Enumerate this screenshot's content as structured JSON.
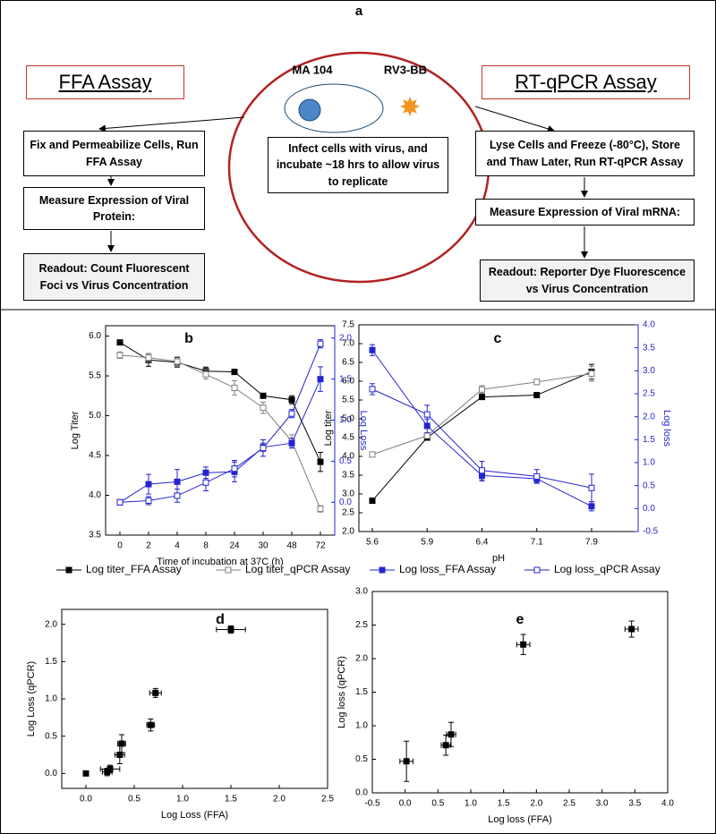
{
  "diagram": {
    "label": "a",
    "left": {
      "title": "FFA Assay",
      "steps": [
        "Fix and Permeabilize Cells, Run FFA Assay",
        "Measure Expression of Viral Protein:",
        "Readout: Count Fluorescent Foci vs Virus Concentration"
      ]
    },
    "center": {
      "cell": "MA 104",
      "virus": "RV3-BB",
      "text": "Infect cells with virus, and incubate ~18 hrs to allow virus to replicate"
    },
    "right": {
      "title": "RT-qPCR Assay",
      "steps": [
        "Lyse Cells and Freeze (-80°C), Store and Thaw Later, Run RT-qPCR Assay",
        "Measure Expression of Viral mRNA:",
        "Readout:  Reporter Dye Fluorescence vs Virus Concentration"
      ]
    }
  },
  "chart_data": [
    {
      "type": "line",
      "label": "b",
      "xlabel": "Time of incubation at 37C (h)",
      "ylabel": "Log Titer",
      "y2label": "Log Loss",
      "categories": [
        "0",
        "2",
        "4",
        "8",
        "24",
        "30",
        "48",
        "72"
      ],
      "ylim": [
        3.5,
        6.13
      ],
      "yticks": [
        {
          "value": 3.5,
          "label": "3.5"
        },
        {
          "value": 4,
          "label": "4.0"
        },
        {
          "value": 4.5,
          "label": "4.5"
        },
        {
          "value": 5,
          "label": "5.0"
        },
        {
          "value": 5.5,
          "label": "5.5"
        },
        {
          "value": 6,
          "label": "6.0"
        }
      ],
      "y2lim": [
        -0.4,
        2.15
      ],
      "y2ticks": [
        {
          "value": 0,
          "label": "0.0"
        },
        {
          "value": 0.5,
          "label": "0.5"
        },
        {
          "value": 1,
          "label": "1.0"
        },
        {
          "value": 1.5,
          "label": "1.5"
        },
        {
          "value": 2,
          "label": "2.0"
        }
      ],
      "series": [
        {
          "name": "Log titer_FFA Assay",
          "color": "#000000",
          "marker": "filled",
          "values": [
            5.92,
            5.7,
            5.67,
            5.56,
            5.55,
            5.25,
            5.2,
            4.42
          ],
          "errors": [
            0.02,
            0.08,
            0.06,
            0.05,
            0.03,
            0.03,
            0.05,
            0.12
          ]
        },
        {
          "name": "Log titer_qPCR Assay",
          "color": "#808080",
          "marker": "open",
          "values": [
            5.76,
            5.73,
            5.68,
            5.52,
            5.35,
            5.1,
            4.68,
            3.83
          ],
          "errors": [
            0.04,
            0.05,
            0.06,
            0.06,
            0.09,
            0.07,
            0.08,
            0.04
          ]
        },
        {
          "name": "Log loss_FFA Assay",
          "color": "#2424d0",
          "marker": "filled",
          "axis": "y2",
          "values": [
            0.0,
            0.22,
            0.25,
            0.36,
            0.37,
            0.67,
            0.72,
            1.5
          ],
          "errors": [
            0.01,
            0.12,
            0.15,
            0.07,
            0.12,
            0.05,
            0.06,
            0.15
          ]
        },
        {
          "name": "Log loss_qPCR Assay",
          "color": "#2424d0",
          "marker": "open",
          "axis": "y2",
          "values": [
            0.0,
            0.02,
            0.08,
            0.24,
            0.41,
            0.66,
            1.08,
            1.93
          ],
          "errors": [
            0.02,
            0.05,
            0.08,
            0.1,
            0.1,
            0.1,
            0.05,
            0.05
          ]
        }
      ]
    },
    {
      "type": "line",
      "label": "c",
      "xlabel": "pH",
      "ylabel": "Log titer",
      "y2label": "Log loss",
      "categories": [
        "5.6",
        "5.9",
        "6.4",
        "7.1",
        "7.9"
      ],
      "ylim": [
        2.0,
        7.5
      ],
      "yticks": [
        {
          "value": 2,
          "label": "2.0"
        },
        {
          "value": 2.5,
          "label": "2.5"
        },
        {
          "value": 3,
          "label": "3.0"
        },
        {
          "value": 3.5,
          "label": "3.5"
        },
        {
          "value": 4,
          "label": "4.0"
        },
        {
          "value": 4.5,
          "label": "4.5"
        },
        {
          "value": 5,
          "label": "5.0"
        },
        {
          "value": 5.5,
          "label": "5.5"
        },
        {
          "value": 6,
          "label": "6.0"
        },
        {
          "value": 6.5,
          "label": "6.5"
        },
        {
          "value": 7,
          "label": "7.0"
        },
        {
          "value": 7.5,
          "label": "7.5"
        }
      ],
      "y2lim": [
        -0.5,
        4.0
      ],
      "y2ticks": [
        {
          "value": -0.5,
          "label": "-0.5"
        },
        {
          "value": 0,
          "label": "0.0"
        },
        {
          "value": 0.5,
          "label": "0.5"
        },
        {
          "value": 1,
          "label": "1.0"
        },
        {
          "value": 1.5,
          "label": "1.5"
        },
        {
          "value": 2,
          "label": "2.0"
        },
        {
          "value": 2.5,
          "label": "2.5"
        },
        {
          "value": 3,
          "label": "3.0"
        },
        {
          "value": 3.5,
          "label": "3.5"
        },
        {
          "value": 4,
          "label": "4.0"
        }
      ],
      "series": [
        {
          "color": "#000000",
          "marker": "filled",
          "values": [
            2.82,
            4.5,
            5.58,
            5.63,
            6.25
          ],
          "errors": [
            0.03,
            0.05,
            0.05,
            0.05,
            0.2
          ]
        },
        {
          "color": "#808080",
          "marker": "open",
          "values": [
            4.05,
            4.55,
            5.78,
            5.98,
            6.2
          ],
          "errors": [
            0.03,
            0.05,
            0.1,
            0.07,
            0.2
          ]
        },
        {
          "color": "#2424d0",
          "marker": "filled",
          "axis": "y2",
          "values": [
            3.45,
            1.8,
            0.72,
            0.65,
            0.05
          ],
          "errors": [
            0.12,
            0.15,
            0.12,
            0.08,
            0.1
          ]
        },
        {
          "color": "#2424d0",
          "marker": "open",
          "axis": "y2",
          "values": [
            2.6,
            2.05,
            0.83,
            0.7,
            0.45
          ],
          "errors": [
            0.12,
            0.2,
            0.2,
            0.15,
            0.3
          ]
        }
      ]
    },
    {
      "type": "scatter",
      "label": "d",
      "xlabel": "Log Loss (FFA)",
      "ylabel": "Log Loss (qPCR)",
      "color": "#000000",
      "xlim": [
        -0.25,
        2.5
      ],
      "xticks": [
        {
          "value": 0,
          "label": "0.0"
        },
        {
          "value": 0.5,
          "label": "0.5"
        },
        {
          "value": 1,
          "label": "1.0"
        },
        {
          "value": 1.5,
          "label": "1.5"
        },
        {
          "value": 2,
          "label": "2.0"
        },
        {
          "value": 2.5,
          "label": "2.5"
        }
      ],
      "ylim": [
        -0.2,
        2.2
      ],
      "yticks": [
        {
          "value": 0,
          "label": "0.0"
        },
        {
          "value": 0.5,
          "label": "0.5"
        },
        {
          "value": 1,
          "label": "1.0"
        },
        {
          "value": 1.5,
          "label": "1.5"
        },
        {
          "value": 2,
          "label": "2.0"
        }
      ],
      "x": [
        0,
        0.22,
        0.25,
        0.35,
        0.37,
        0.67,
        0.72,
        1.5
      ],
      "y": [
        0,
        0.02,
        0.06,
        0.25,
        0.4,
        0.65,
        1.08,
        1.93
      ],
      "xerr": [
        0,
        0.05,
        0.1,
        0.05,
        0.04,
        0.04,
        0.06,
        0.15
      ],
      "yerr": [
        0,
        0.05,
        0.05,
        0.12,
        0.12,
        0.08,
        0.06,
        0.05
      ]
    },
    {
      "type": "scatter",
      "label": "e",
      "xlabel": "Log loss (FFA)",
      "ylabel": "Log loss (qPCR)",
      "color": "#000000",
      "xlim": [
        -0.5,
        4.0
      ],
      "xticks": [
        {
          "value": -0.5,
          "label": "-0.5"
        },
        {
          "value": 0,
          "label": "0.0"
        },
        {
          "value": 0.5,
          "label": "0.5"
        },
        {
          "value": 1,
          "label": "1.0"
        },
        {
          "value": 1.5,
          "label": "1.5"
        },
        {
          "value": 2,
          "label": "2.0"
        },
        {
          "value": 2.5,
          "label": "2.5"
        },
        {
          "value": 3,
          "label": "3.0"
        },
        {
          "value": 3.5,
          "label": "3.5"
        },
        {
          "value": 4,
          "label": "4.0"
        }
      ],
      "ylim": [
        0.0,
        3.0
      ],
      "yticks": [
        {
          "value": 0,
          "label": "0.0"
        },
        {
          "value": 0.5,
          "label": "0.5"
        },
        {
          "value": 1,
          "label": "1.0"
        },
        {
          "value": 1.5,
          "label": "1.5"
        },
        {
          "value": 2,
          "label": "2.0"
        },
        {
          "value": 2.5,
          "label": "2.5"
        },
        {
          "value": 3,
          "label": "3.0"
        }
      ],
      "x": [
        0.02,
        0.62,
        0.7,
        1.8,
        3.45
      ],
      "y": [
        0.47,
        0.71,
        0.87,
        2.21,
        2.44
      ],
      "xerr": [
        0.1,
        0.07,
        0.07,
        0.1,
        0.1
      ],
      "yerr": [
        0.3,
        0.15,
        0.18,
        0.15,
        0.12
      ]
    }
  ]
}
